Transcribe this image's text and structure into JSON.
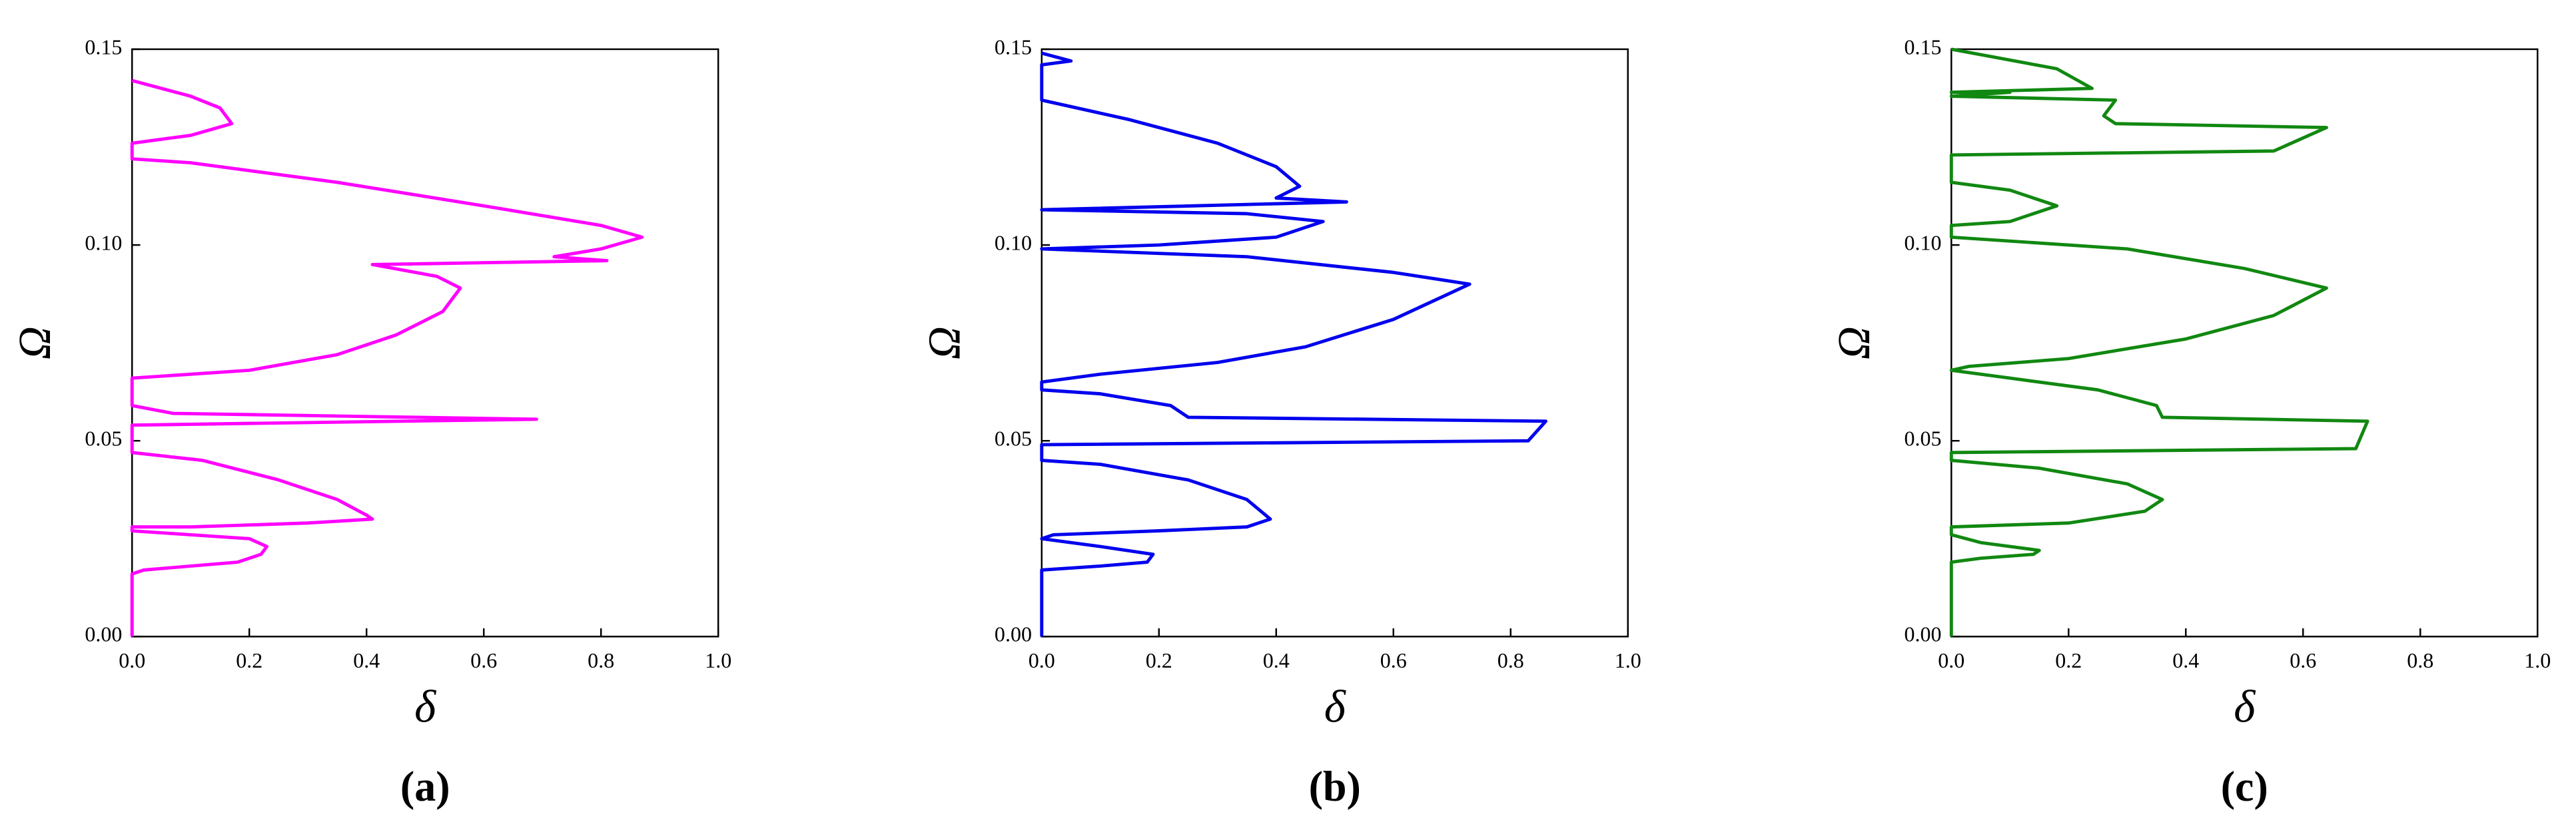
{
  "chart_data": [
    {
      "type": "line",
      "color": "#ff00ff",
      "xlabel": "δ",
      "ylabel": "Ω",
      "caption": "(a)",
      "xlim": [
        0,
        1
      ],
      "ylim": [
        0,
        0.15
      ],
      "xticks": [
        {
          "value": 0,
          "label": "0.0"
        },
        0.2,
        0.4,
        0.6,
        0.8,
        {
          "value": 1,
          "label": "1.0"
        }
      ],
      "yticks": [
        {
          "value": 0,
          "label": "0.00"
        },
        0.05,
        {
          "value": 0.1,
          "label": "0.10"
        },
        0.15
      ],
      "x": [
        0,
        0,
        0.02,
        0.1,
        0.18,
        0.22,
        0.23,
        0.2,
        0.1,
        0,
        0,
        0.1,
        0.3,
        0.41,
        0.4,
        0.35,
        0.25,
        0.12,
        0,
        0,
        0.69,
        0.07,
        0,
        0,
        0.2,
        0.35,
        0.45,
        0.53,
        0.56,
        0.52,
        0.41,
        0.81,
        0.72,
        0.8,
        0.87,
        0.8,
        0.6,
        0.35,
        0.1,
        0,
        0,
        0.1,
        0.17,
        0.15,
        0.1,
        0
      ],
      "values": [
        0,
        0.016,
        0.017,
        0.018,
        0.019,
        0.021,
        0.023,
        0.025,
        0.026,
        0.027,
        0.028,
        0.028,
        0.029,
        0.03,
        0.031,
        0.035,
        0.04,
        0.045,
        0.047,
        0.054,
        0.0555,
        0.057,
        0.059,
        0.066,
        0.068,
        0.072,
        0.077,
        0.083,
        0.089,
        0.092,
        0.095,
        0.096,
        0.097,
        0.099,
        0.102,
        0.105,
        0.11,
        0.116,
        0.121,
        0.122,
        0.126,
        0.128,
        0.131,
        0.135,
        0.138,
        0.142
      ]
    },
    {
      "type": "line",
      "color": "#0000ee",
      "xlabel": "δ",
      "ylabel": "Ω",
      "caption": "(b)",
      "xlim": [
        0,
        1
      ],
      "ylim": [
        0,
        0.15
      ],
      "xticks": [
        {
          "value": 0,
          "label": "0.0"
        },
        0.2,
        0.4,
        0.6,
        0.8,
        {
          "value": 1,
          "label": "1.0"
        }
      ],
      "yticks": [
        {
          "value": 0,
          "label": "0.00"
        },
        0.05,
        {
          "value": 0.1,
          "label": "0.10"
        },
        0.15
      ],
      "x": [
        0,
        0,
        0.1,
        0.18,
        0.19,
        0.1,
        0,
        0.02,
        0.2,
        0.35,
        0.39,
        0.35,
        0.25,
        0.1,
        0,
        0,
        0.83,
        0.86,
        0.25,
        0.22,
        0.1,
        0,
        0,
        0.1,
        0.3,
        0.45,
        0.6,
        0.73,
        0.6,
        0.35,
        0,
        0.2,
        0.4,
        0.48,
        0.35,
        0,
        0.52,
        0.4,
        0.44,
        0.4,
        0.3,
        0.15,
        0,
        0,
        0.05,
        0
      ],
      "values": [
        0,
        0.017,
        0.018,
        0.019,
        0.021,
        0.023,
        0.025,
        0.026,
        0.027,
        0.028,
        0.03,
        0.035,
        0.04,
        0.044,
        0.045,
        0.049,
        0.05,
        0.055,
        0.056,
        0.059,
        0.062,
        0.063,
        0.065,
        0.067,
        0.07,
        0.074,
        0.081,
        0.09,
        0.093,
        0.097,
        0.099,
        0.1,
        0.102,
        0.106,
        0.108,
        0.109,
        0.111,
        0.112,
        0.115,
        0.12,
        0.126,
        0.132,
        0.137,
        0.146,
        0.147,
        0.149
      ]
    },
    {
      "type": "line",
      "color": "#118811",
      "xlabel": "δ",
      "ylabel": "Ω",
      "caption": "(c)",
      "xlim": [
        0,
        1
      ],
      "ylim": [
        0,
        0.15
      ],
      "xticks": [
        {
          "value": 0,
          "label": "0.0"
        },
        0.2,
        0.4,
        0.6,
        0.8,
        {
          "value": 1,
          "label": "1.0"
        }
      ],
      "yticks": [
        {
          "value": 0,
          "label": "0.00"
        },
        0.05,
        {
          "value": 0.1,
          "label": "0.10"
        },
        0.15
      ],
      "x": [
        0,
        0,
        0.05,
        0.14,
        0.15,
        0.05,
        0,
        0,
        0.2,
        0.33,
        0.36,
        0.3,
        0.15,
        0,
        0,
        0.69,
        0.71,
        0.36,
        0.35,
        0.25,
        0.1,
        0,
        0.03,
        0.2,
        0.4,
        0.55,
        0.64,
        0.5,
        0.3,
        0,
        0,
        0.1,
        0.18,
        0.1,
        0,
        0,
        0.55,
        0.64,
        0.28,
        0.26,
        0.28,
        0,
        0.1,
        0,
        0.24,
        0.18,
        0
      ],
      "values": [
        0,
        0.019,
        0.02,
        0.021,
        0.022,
        0.024,
        0.026,
        0.028,
        0.029,
        0.032,
        0.035,
        0.039,
        0.043,
        0.045,
        0.047,
        0.048,
        0.055,
        0.056,
        0.059,
        0.063,
        0.066,
        0.068,
        0.069,
        0.071,
        0.076,
        0.082,
        0.089,
        0.094,
        0.099,
        0.102,
        0.105,
        0.106,
        0.11,
        0.114,
        0.116,
        0.123,
        0.124,
        0.13,
        0.131,
        0.133,
        0.137,
        0.138,
        0.139,
        0.139,
        0.14,
        0.145,
        0.15
      ]
    }
  ]
}
